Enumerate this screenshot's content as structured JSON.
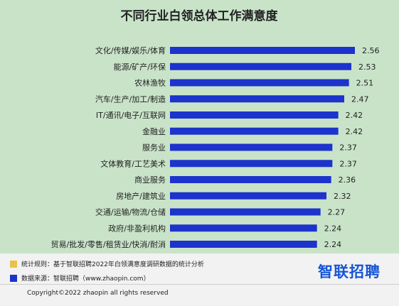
{
  "chart_data": {
    "type": "bar",
    "orientation": "horizontal",
    "title": "不同行业白领总体工作满意度",
    "categories": [
      "文化/传媒/娱乐/体育",
      "能源/矿产/环保",
      "农林渔牧",
      "汽车/生产/加工/制造",
      "IT/通讯/电子/互联网",
      "金融业",
      "服务业",
      "文体教育/工艺美术",
      "商业服务",
      "房地产/建筑业",
      "交通/运输/物流/仓储",
      "政府/非盈利机构",
      "贸易/批发/零售/租赁业/快消/耐消"
    ],
    "values": [
      2.56,
      2.53,
      2.51,
      2.47,
      2.42,
      2.42,
      2.37,
      2.37,
      2.36,
      2.32,
      2.27,
      2.24,
      2.24
    ],
    "value_labels": [
      "2.56",
      "2.53",
      "2.51",
      "2.47",
      "2.42",
      "2.42",
      "2.37",
      "2.37",
      "2.36",
      "2.32",
      "2.27",
      "2.24",
      "2.24"
    ],
    "bar_color": "#1c33cc",
    "grid": false,
    "axes_visible": false
  },
  "footer": {
    "note1": "统计规则：基于智联招聘2022年白领满意度调研数据的统计分析",
    "note1_color": "#e8c24a",
    "note2": "数据来源：智联招聘（www.zhaopin.com）",
    "note2_color": "#1c33cc",
    "brand": "智联招聘",
    "brand_color": "#1655d6",
    "copyright": "Copyright©2022 zhaopin all rights reserved"
  }
}
